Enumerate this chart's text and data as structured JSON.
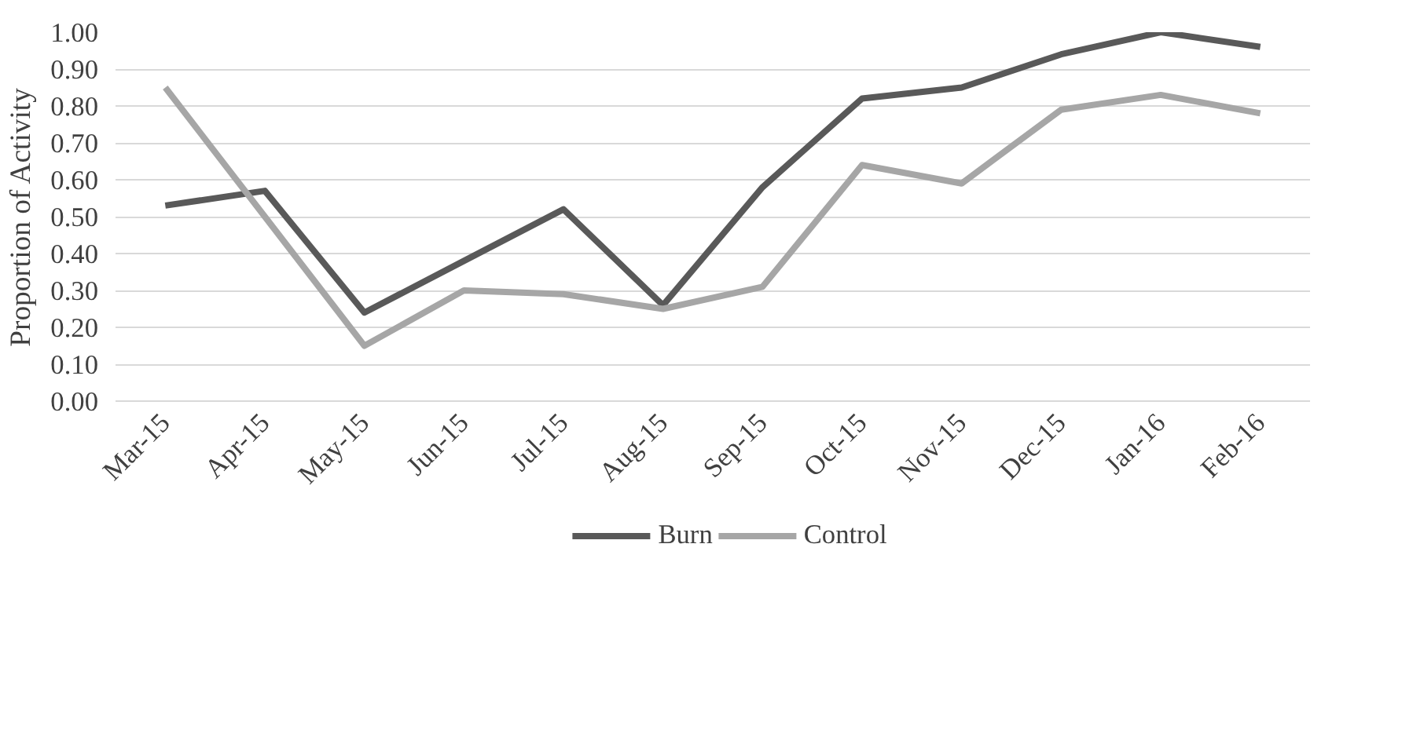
{
  "chart_data": {
    "type": "line",
    "ylabel": "Proportion of Activity",
    "categories": [
      "Mar-15",
      "Apr-15",
      "May-15",
      "Jun-15",
      "Jul-15",
      "Aug-15",
      "Sep-15",
      "Oct-15",
      "Nov-15",
      "Dec-15",
      "Jan-16",
      "Feb-16"
    ],
    "series": [
      {
        "name": "Burn",
        "color": "#595959",
        "values": [
          0.53,
          0.57,
          0.24,
          0.38,
          0.52,
          0.26,
          0.58,
          0.82,
          0.85,
          0.94,
          1.0,
          0.96
        ]
      },
      {
        "name": "Control",
        "color": "#a6a6a6",
        "values": [
          0.85,
          0.5,
          0.15,
          0.3,
          0.29,
          0.25,
          0.31,
          0.64,
          0.59,
          0.79,
          0.83,
          0.78
        ]
      }
    ],
    "ylim": [
      0,
      1.0
    ],
    "yticks": [
      {
        "value": 0,
        "label": "0.00"
      },
      {
        "value": 0.1,
        "label": "0.10"
      },
      {
        "value": 0.2,
        "label": "0.20"
      },
      {
        "value": 0.3,
        "label": "0.30"
      },
      {
        "value": 0.4,
        "label": "0.40"
      },
      {
        "value": 0.5,
        "label": "0.50"
      },
      {
        "value": 0.6,
        "label": "0.60"
      },
      {
        "value": 0.7,
        "label": "0.70"
      },
      {
        "value": 0.8,
        "label": "0.80"
      },
      {
        "value": 0.9,
        "label": "0.90"
      },
      {
        "value": 1.0,
        "label": "1.00"
      }
    ],
    "grid": "y",
    "legend": "bottom",
    "marker": "none",
    "line_style": "solid"
  }
}
